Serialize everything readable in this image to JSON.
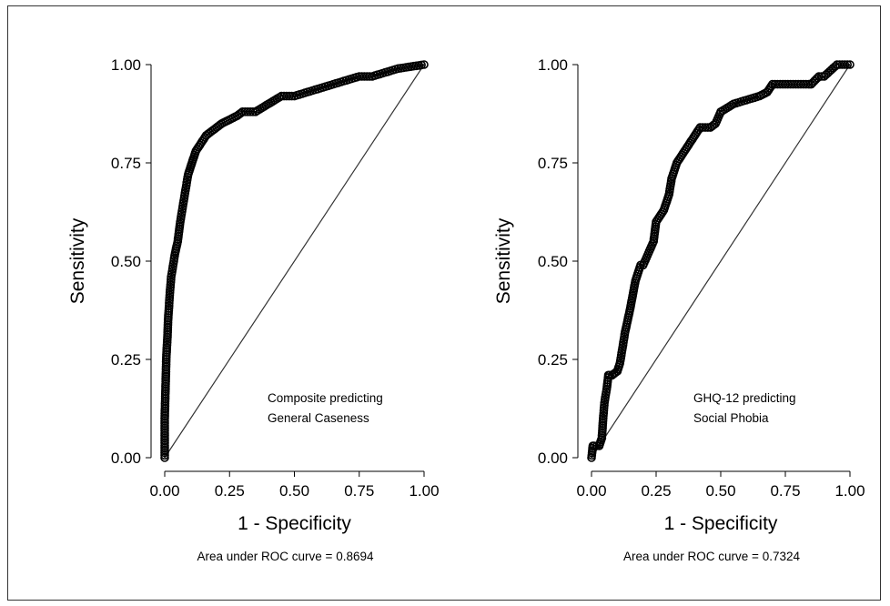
{
  "chart_data": [
    {
      "type": "line",
      "xlabel": "1 - Specificity",
      "ylabel": "Sensitivity",
      "xlim": [
        0,
        1
      ],
      "ylim": [
        0,
        1
      ],
      "x_ticks": [
        "0.00",
        "0.25",
        "0.50",
        "0.75",
        "1.00"
      ],
      "y_ticks": [
        "0.00",
        "0.25",
        "0.50",
        "0.75",
        "1.00"
      ],
      "annotation": [
        "Composite predicting",
        "General Caseness"
      ],
      "caption": "Area under ROC curve = 0.8694",
      "auc": 0.8694,
      "grid": false,
      "reference_line": [
        [
          0,
          0
        ],
        [
          1,
          1
        ]
      ],
      "series": [
        {
          "x": [
            0,
            0,
            0,
            0.002,
            0.004,
            0.006,
            0.008,
            0.01,
            0.013,
            0.016,
            0.02,
            0.025,
            0.03,
            0.035,
            0.04,
            0.05,
            0.06,
            0.07,
            0.08,
            0.09,
            0.1,
            0.11,
            0.12,
            0.13,
            0.14,
            0.16,
            0.18,
            0.2,
            0.22,
            0.25,
            0.28,
            0.3,
            0.35,
            0.4,
            0.45,
            0.5,
            0.55,
            0.6,
            0.65,
            0.7,
            0.75,
            0.8,
            0.85,
            0.9,
            0.95,
            1.0
          ],
          "y": [
            0,
            0.05,
            0.1,
            0.15,
            0.2,
            0.25,
            0.28,
            0.3,
            0.35,
            0.38,
            0.42,
            0.46,
            0.48,
            0.5,
            0.52,
            0.55,
            0.6,
            0.64,
            0.68,
            0.72,
            0.74,
            0.76,
            0.78,
            0.79,
            0.8,
            0.82,
            0.83,
            0.84,
            0.85,
            0.86,
            0.87,
            0.88,
            0.88,
            0.9,
            0.92,
            0.92,
            0.93,
            0.94,
            0.95,
            0.96,
            0.97,
            0.97,
            0.98,
            0.99,
            0.995,
            1.0
          ]
        }
      ]
    },
    {
      "type": "line",
      "xlabel": "1 - Specificity",
      "ylabel": "Sensitivity",
      "xlim": [
        0,
        1
      ],
      "ylim": [
        0,
        1
      ],
      "x_ticks": [
        "0.00",
        "0.25",
        "0.50",
        "0.75",
        "1.00"
      ],
      "y_ticks": [
        "0.00",
        "0.25",
        "0.50",
        "0.75",
        "1.00"
      ],
      "annotation": [
        "GHQ-12 predicting",
        "Social Phobia"
      ],
      "caption": "Area under ROC curve = 0.7324",
      "auc": 0.7324,
      "grid": false,
      "reference_line": [
        [
          0,
          0
        ],
        [
          1,
          1
        ]
      ],
      "series": [
        {
          "x": [
            0,
            0.005,
            0.01,
            0.02,
            0.03,
            0.04,
            0.045,
            0.05,
            0.06,
            0.065,
            0.07,
            0.08,
            0.1,
            0.11,
            0.12,
            0.13,
            0.14,
            0.15,
            0.17,
            0.19,
            0.2,
            0.22,
            0.24,
            0.25,
            0.27,
            0.28,
            0.3,
            0.31,
            0.33,
            0.34,
            0.36,
            0.38,
            0.4,
            0.42,
            0.44,
            0.46,
            0.48,
            0.5,
            0.55,
            0.6,
            0.65,
            0.68,
            0.7,
            0.75,
            0.8,
            0.85,
            0.88,
            0.9,
            0.95,
            1.0
          ],
          "y": [
            0,
            0.03,
            0.03,
            0.03,
            0.03,
            0.05,
            0.1,
            0.14,
            0.18,
            0.21,
            0.21,
            0.21,
            0.22,
            0.24,
            0.28,
            0.32,
            0.35,
            0.38,
            0.45,
            0.49,
            0.49,
            0.52,
            0.55,
            0.6,
            0.62,
            0.63,
            0.67,
            0.71,
            0.75,
            0.76,
            0.78,
            0.8,
            0.82,
            0.84,
            0.84,
            0.84,
            0.85,
            0.88,
            0.9,
            0.91,
            0.92,
            0.93,
            0.95,
            0.95,
            0.95,
            0.95,
            0.97,
            0.97,
            1.0,
            1.0
          ]
        }
      ]
    }
  ]
}
